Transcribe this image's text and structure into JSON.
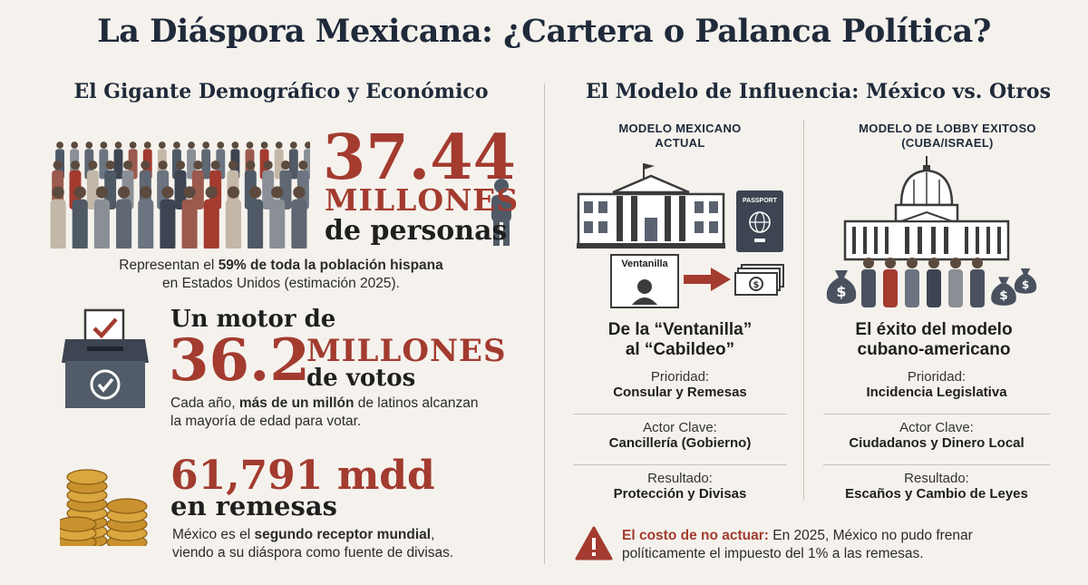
{
  "title": "La Diáspora Mexicana: ¿Cartera o Palanca Política?",
  "left": {
    "section_title": "El Gigante Demográfico y Económico",
    "population": {
      "number": "37.44",
      "unit": "MILLONES",
      "suffix": "de personas",
      "desc_pre": "Representan el ",
      "desc_bold": "59% de toda la población hispana",
      "desc_post": "en Estados Unidos (estimación 2025)."
    },
    "votes": {
      "lead": "Un motor de",
      "number": "36.2",
      "unit": "MILLONES",
      "suffix": "de votos",
      "desc_pre": "Cada año, ",
      "desc_bold": "más de un millón",
      "desc_post": " de latinos alcanzan",
      "desc_line2": "la mayoría de edad para votar."
    },
    "remittances": {
      "number": "61,791 mdd",
      "suffix": "en remesas",
      "desc_pre": "México es el ",
      "desc_bold": "segundo receptor mundial",
      "desc_post": ",",
      "desc_line2": "viendo a su diáspora como fuente de divisas."
    }
  },
  "right": {
    "section_title": "El Modelo de Influencia: México vs. Otros",
    "mexican": {
      "header_line1": "MODELO MEXICANO",
      "header_line2": "ACTUAL",
      "window_label": "Ventanilla",
      "passport_label": "PASSPORT",
      "subtitle_line1": "De la “Ventanilla”",
      "subtitle_line2": "al “Cabildeo”",
      "rows": [
        {
          "label": "Prioridad:",
          "value": "Consular y Remesas"
        },
        {
          "label": "Actor Clave:",
          "value": "Cancillería (Gobierno)"
        },
        {
          "label": "Resultado:",
          "value": "Protección y Divisas"
        }
      ]
    },
    "lobby": {
      "header_line1": "MODELO DE LOBBY EXITOSO",
      "header_line2": "(CUBA/ISRAEL)",
      "subtitle_line1": "El éxito del modelo",
      "subtitle_line2": "cubano-americano",
      "rows": [
        {
          "label": "Prioridad:",
          "value": "Incidencia Legislativa"
        },
        {
          "label": "Actor Clave:",
          "value": "Ciudadanos y Dinero Local"
        },
        {
          "label": "Resultado:",
          "value": "Escaños y Cambio de Leyes"
        }
      ]
    },
    "warning": {
      "bold": "El costo de no actuar:",
      "text": " En 2025, México no pudo frenar",
      "line2": "políticamente el impuesto del 1% a las remesas."
    }
  },
  "colors": {
    "accent": "#a33b2f",
    "navy": "#1f2a3a",
    "slate": "#4a5260",
    "background": "#f5f2ed"
  },
  "icons": [
    "crowd-icon",
    "ballot-box-icon",
    "coins-icon",
    "government-building-icon",
    "passport-icon",
    "service-window-icon",
    "arrow-right-icon",
    "cash-icon",
    "capitol-icon",
    "money-bag-icon",
    "people-group-icon",
    "warning-icon"
  ]
}
